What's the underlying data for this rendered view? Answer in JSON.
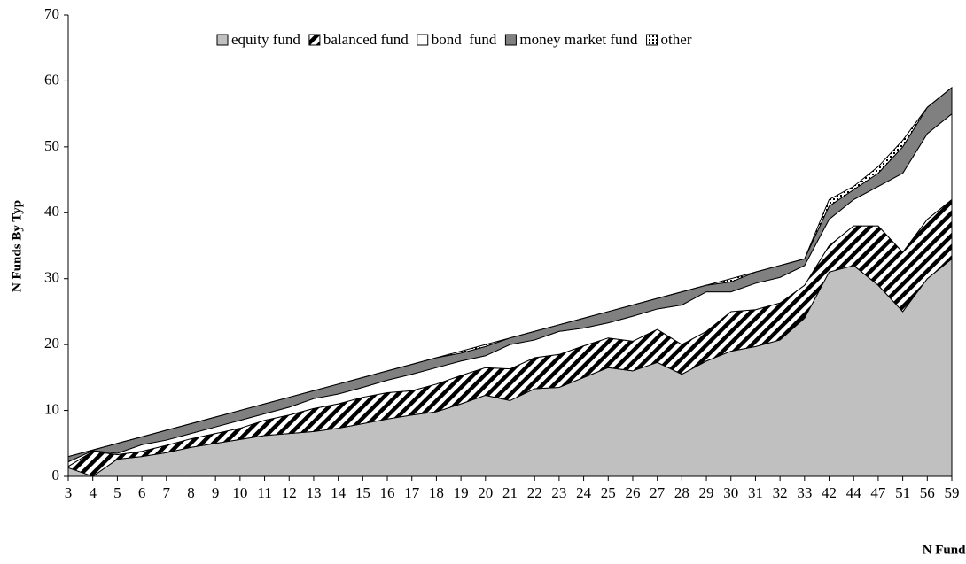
{
  "chart_data": {
    "type": "stacked_area",
    "x_label": "N Funds",
    "y_label": "N Funds By Typ",
    "categories": [
      3,
      4,
      5,
      6,
      7,
      8,
      9,
      10,
      11,
      12,
      13,
      14,
      15,
      16,
      17,
      18,
      19,
      20,
      21,
      22,
      23,
      24,
      25,
      26,
      27,
      28,
      29,
      30,
      31,
      32,
      33,
      42,
      44,
      47,
      51,
      56,
      59
    ],
    "ylim": [
      0,
      70
    ],
    "yticks": [
      0,
      10,
      20,
      30,
      40,
      50,
      60,
      70
    ],
    "grid": false,
    "legend": "top",
    "series": [
      {
        "name": "equity fund",
        "color": "#c0c0c0",
        "pattern": "solid",
        "values": [
          1.3,
          0,
          2.6,
          3,
          3.6,
          4.4,
          5,
          5.6,
          6.2,
          6.5,
          6.8,
          7.3,
          8,
          8.7,
          9.3,
          9.8,
          11,
          12.3,
          11.5,
          13.3,
          13.5,
          15,
          16.5,
          16,
          17.3,
          15.5,
          17.5,
          19,
          19.7,
          20.7,
          24,
          31,
          32,
          29,
          25,
          30,
          33
        ]
      },
      {
        "name": "balanced fund",
        "color": "#000000",
        "pattern": "hatch",
        "values": [
          0.2,
          3.8,
          0.7,
          0.8,
          1.1,
          1.3,
          1.5,
          1.7,
          2.3,
          2.8,
          3.5,
          3.7,
          4,
          4,
          3.7,
          4.2,
          4.3,
          4.2,
          4.8,
          4.7,
          5,
          4.8,
          4.5,
          4.5,
          5,
          4.5,
          4.5,
          6,
          5.6,
          5.6,
          5,
          4,
          6,
          9,
          9,
          9,
          9
        ]
      },
      {
        "name": "bond  fund",
        "color": "#ffffff",
        "pattern": "solid",
        "values": [
          0.7,
          0.1,
          0.2,
          1,
          0.8,
          0.8,
          1,
          1.2,
          1,
          1.2,
          1.5,
          1.5,
          1.5,
          1.9,
          2.5,
          2.5,
          2.2,
          1.8,
          3.7,
          2.7,
          3.5,
          2.7,
          2.3,
          3.8,
          3.1,
          6,
          6,
          3,
          4,
          3.9,
          3,
          4,
          4,
          6,
          12,
          13,
          13
        ]
      },
      {
        "name": "money market fund",
        "color": "#808080",
        "pattern": "solid",
        "values": [
          0.8,
          0.1,
          1.5,
          1.2,
          1.5,
          1.5,
          1.5,
          1.5,
          1.5,
          1.5,
          1.2,
          1.5,
          1.5,
          1.4,
          1.5,
          1.5,
          1.2,
          1.4,
          1,
          1.3,
          1,
          1.5,
          1.7,
          1.7,
          1.6,
          2,
          1,
          1.5,
          1.7,
          1.8,
          1,
          2,
          1.5,
          2,
          4,
          4,
          4
        ]
      },
      {
        "name": "other",
        "color": "#000000",
        "pattern": "dots",
        "values": [
          0,
          0,
          0,
          0,
          0,
          0,
          0,
          0,
          0,
          0,
          0,
          0,
          0,
          0,
          0,
          0,
          0.3,
          0.3,
          0,
          0,
          0,
          0,
          0,
          0,
          0,
          0,
          0,
          0.5,
          0,
          0,
          0,
          1,
          0.5,
          1,
          1,
          0,
          0
        ]
      }
    ]
  }
}
